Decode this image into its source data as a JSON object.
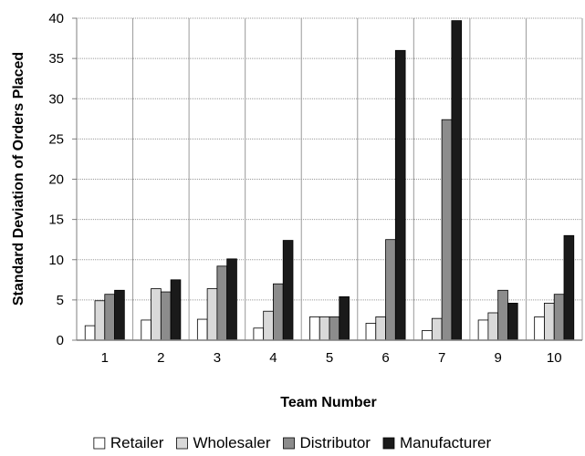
{
  "chart_data": {
    "type": "bar",
    "title": "",
    "xlabel": "Team Number",
    "ylabel": "Standard Deviation of Orders Placed",
    "ylim": [
      0,
      40
    ],
    "yticks": [
      0,
      5,
      10,
      15,
      20,
      25,
      30,
      35,
      40
    ],
    "grid": true,
    "legend_position": "bottom",
    "categories": [
      "1",
      "2",
      "3",
      "4",
      "5",
      "6",
      "7",
      "9",
      "10"
    ],
    "series": [
      {
        "name": "Retailer",
        "color": "#ffffff",
        "values": [
          1.8,
          2.5,
          2.6,
          1.5,
          2.9,
          2.1,
          1.2,
          2.5,
          2.9
        ]
      },
      {
        "name": "Wholesaler",
        "color": "#d9d9d9",
        "values": [
          4.9,
          6.4,
          6.4,
          3.6,
          2.9,
          2.9,
          2.7,
          3.4,
          4.6
        ]
      },
      {
        "name": "Distributor",
        "color": "#8c8c8c",
        "values": [
          5.7,
          6.0,
          9.2,
          7.0,
          2.9,
          12.5,
          27.4,
          6.2,
          5.7
        ]
      },
      {
        "name": "Manufacturer",
        "color": "#1a1a1a",
        "values": [
          6.2,
          7.5,
          10.1,
          12.4,
          5.4,
          36.0,
          39.7,
          4.6,
          13.0
        ]
      }
    ]
  }
}
